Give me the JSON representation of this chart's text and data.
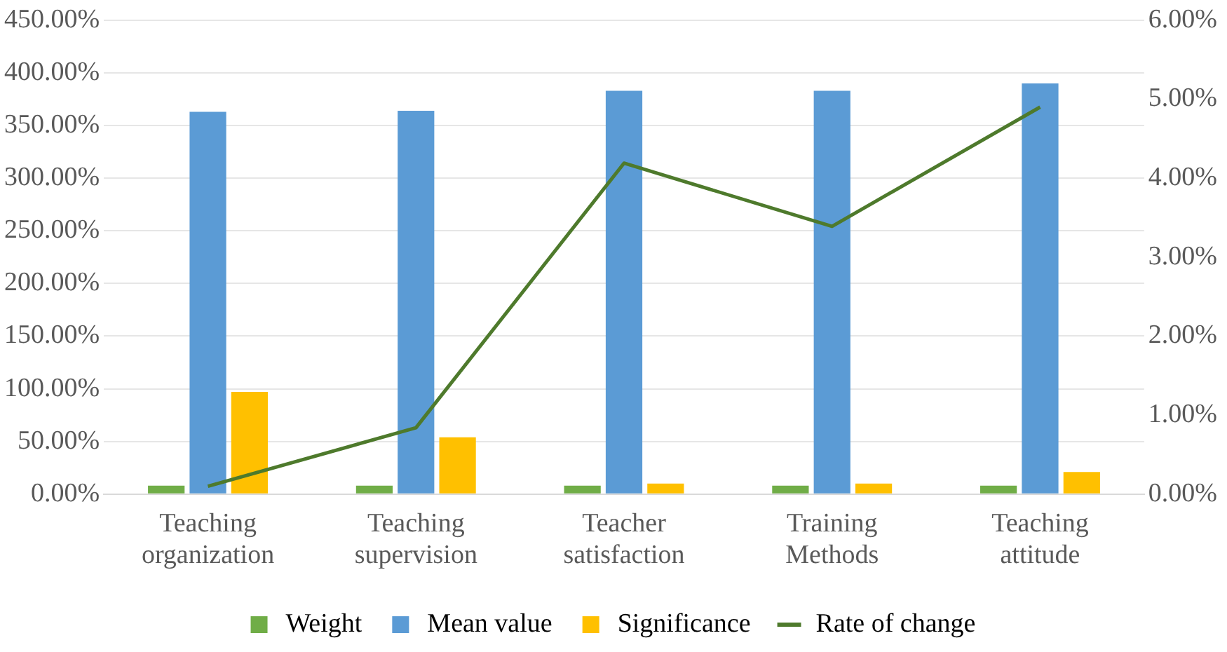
{
  "chart_data": {
    "type": "bar",
    "categories": [
      "Teaching organization",
      "Teaching supervision",
      "Teacher satisfaction",
      "Training Methods",
      "Teaching attitude"
    ],
    "series": [
      {
        "name": "Weight",
        "color": "#70ad47",
        "values": [
          8,
          8,
          8,
          8,
          8
        ]
      },
      {
        "name": "Mean value",
        "color": "#5b9bd5",
        "values": [
          363,
          364,
          383,
          383,
          390
        ]
      },
      {
        "name": "Significance",
        "color": "#ffc000",
        "values": [
          97,
          54,
          10,
          10,
          21
        ]
      },
      {
        "name": "Rate of change",
        "type": "line",
        "axis": "y2",
        "color": "#4e7a2c",
        "values": [
          0.1,
          0.84,
          4.19,
          3.39,
          4.9
        ]
      }
    ],
    "ylim": [
      0,
      450
    ],
    "yticks": [
      {
        "value": 0,
        "label": "0.00%"
      },
      {
        "value": 50,
        "label": "50.00%"
      },
      {
        "value": 100,
        "label": "100.00%"
      },
      {
        "value": 150,
        "label": "150.00%"
      },
      {
        "value": 200,
        "label": "200.00%"
      },
      {
        "value": 250,
        "label": "250.00%"
      },
      {
        "value": 300,
        "label": "300.00%"
      },
      {
        "value": 350,
        "label": "350.00%"
      },
      {
        "value": 400,
        "label": "400.00%"
      },
      {
        "value": 450,
        "label": "450.00%"
      }
    ],
    "y2lim": [
      0,
      6
    ],
    "y2ticks": [
      {
        "value": 0,
        "label": "0.00%"
      },
      {
        "value": 1,
        "label": "1.00%"
      },
      {
        "value": 2,
        "label": "2.00%"
      },
      {
        "value": 3,
        "label": "3.00%"
      },
      {
        "value": 4,
        "label": "4.00%"
      },
      {
        "value": 5,
        "label": "5.00%"
      },
      {
        "value": 6,
        "label": "6.00%"
      }
    ],
    "grid": "y",
    "legend": "bottom",
    "marker": "none"
  }
}
